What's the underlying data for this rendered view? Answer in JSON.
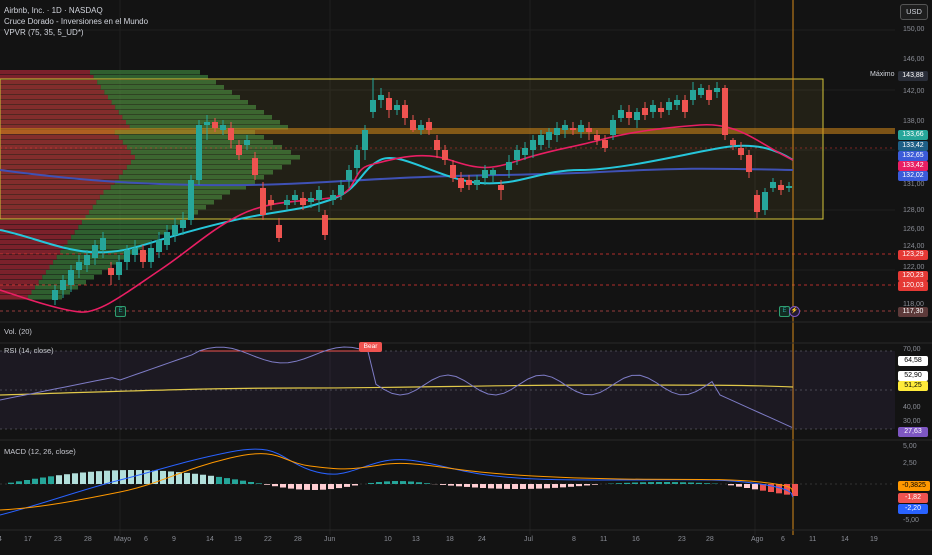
{
  "symbol_title": "Airbnb, Inc. · 1D · NASDAQ",
  "indicator_1": "Cruce Dorado - Inversiones en el Mundo",
  "indicator_2": "VPVR (75, 35, 5_UD*)",
  "currency": "USD",
  "max_label": "Máximo",
  "price_axis": [
    "150,00",
    "146,00",
    "142,00",
    "138,00",
    "131,00",
    "128,00",
    "126,00",
    "124,00",
    "122,00",
    "118,00"
  ],
  "price_tags": [
    {
      "label": "143,88",
      "color": "#2a2e39"
    },
    {
      "label": "133,66",
      "color": "#26a69a"
    },
    {
      "label": "133,42",
      "color": "#1e5f86"
    },
    {
      "label": "132,65",
      "color": "#3b5bd9"
    },
    {
      "label": "133,42",
      "color": "#e91e63"
    },
    {
      "label": "132,02",
      "color": "#3b5bd9"
    },
    {
      "label": "123,29",
      "color": "#e53935"
    },
    {
      "label": "120,23",
      "color": "#e53935"
    },
    {
      "label": "120,03",
      "color": "#e53935"
    },
    {
      "label": "117,30",
      "color": "#5d3a3a"
    }
  ],
  "vol_title": "Vol. (20)",
  "rsi": {
    "title": "RSI (14, close)",
    "axis": [
      "70,00",
      "40,00",
      "30,00"
    ],
    "tags": [
      {
        "label": "64,58",
        "color": "#ffffff",
        "text": "#000000"
      },
      {
        "label": "52,90",
        "color": "#ffffff",
        "text": "#000000"
      },
      {
        "label": "51,25",
        "color": "#ffeb3b",
        "text": "#000000"
      },
      {
        "label": "27,63",
        "color": "#7e57c2",
        "text": "#ffffff"
      }
    ],
    "bear_label": "Bear"
  },
  "macd": {
    "title": "MACD (12, 26, close)",
    "axis": [
      "5,00",
      "2,50",
      "-5,00"
    ],
    "tags": [
      {
        "label": "-0,3825",
        "color": "#ff9800",
        "text": "#000000"
      },
      {
        "label": "-1,82",
        "color": "#ef5350",
        "text": "#ffffff"
      },
      {
        "label": "-2,20",
        "color": "#2962ff",
        "text": "#ffffff"
      }
    ]
  },
  "dates": [
    "4",
    "17",
    "23",
    "28",
    "Mayo",
    "6",
    "9",
    "14",
    "19",
    "22",
    "28",
    "Jun",
    "10",
    "13",
    "18",
    "24",
    "Jul",
    "8",
    "11",
    "16",
    "23",
    "28",
    "Ago",
    "6",
    "11",
    "14",
    "19"
  ],
  "earnings_badge": "E",
  "colors": {
    "up": "#26a69a",
    "down": "#ef5350",
    "box": "#d4c53a",
    "ma_fast": "#e91e63",
    "ma_teal": "#26c6da",
    "ma_blue": "#3f51b5"
  }
}
